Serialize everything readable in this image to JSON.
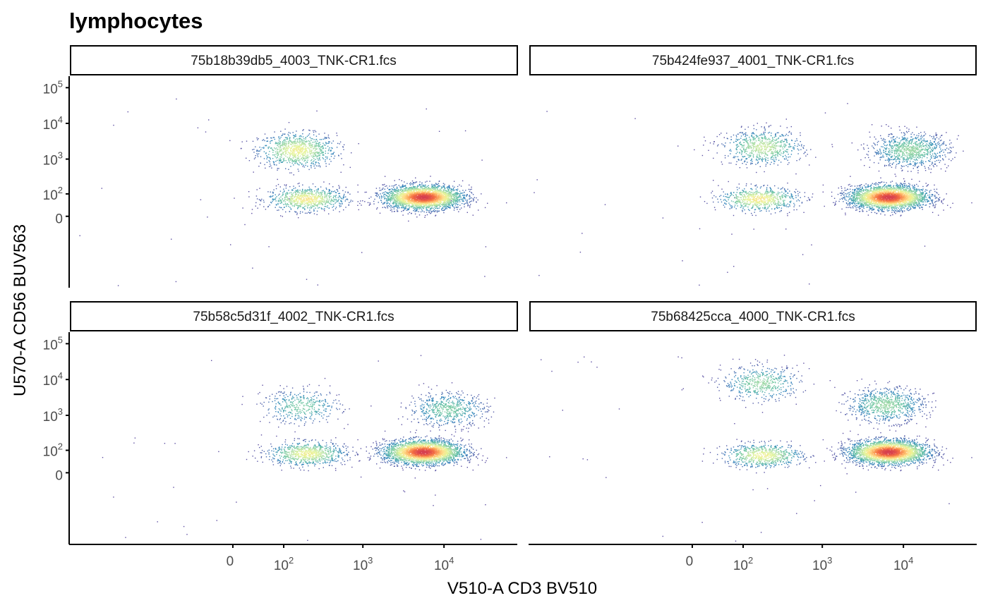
{
  "chart_data": {
    "type": "scatter",
    "title": "lymphocytes",
    "xlabel": "V510-A CD3 BV510",
    "ylabel": "U570-A CD56 BUV563",
    "x_scale": "logicle",
    "y_scale": "logicle",
    "x_ticks": [
      {
        "value": 0,
        "base": "0",
        "exp": ""
      },
      {
        "value": 100,
        "base": "10",
        "exp": "2"
      },
      {
        "value": 1000,
        "base": "10",
        "exp": "3"
      },
      {
        "value": 10000,
        "base": "10",
        "exp": "4"
      }
    ],
    "y_ticks": [
      {
        "value": 0,
        "base": "0",
        "exp": ""
      },
      {
        "value": 100,
        "base": "10",
        "exp": "2"
      },
      {
        "value": 1000,
        "base": "10",
        "exp": "3"
      },
      {
        "value": 10000,
        "base": "10",
        "exp": "4"
      },
      {
        "value": 100000,
        "base": "10",
        "exp": "5"
      }
    ],
    "color_scale": [
      "#5e4fa2",
      "#3288bd",
      "#66c2a5",
      "#abdda4",
      "#e6f598",
      "#fee08b",
      "#fdae61",
      "#f46d43",
      "#d53e4f"
    ],
    "legend": "none",
    "grid": false,
    "panels": [
      {
        "name": "75b18b39db5_4003_TNK-CR1.fcs",
        "populations": [
          {
            "x": 150,
            "y": 1800,
            "n": 900,
            "peak": 0.55
          },
          {
            "x": 200,
            "y": 70,
            "n": 800,
            "peak": 0.6
          },
          {
            "x": 5500,
            "y": 80,
            "n": 3000,
            "peak": 1.0
          }
        ]
      },
      {
        "name": "75b424fe937_4001_TNK-CR1.fcs",
        "populations": [
          {
            "x": 180,
            "y": 2200,
            "n": 700,
            "peak": 0.45
          },
          {
            "x": 160,
            "y": 70,
            "n": 700,
            "peak": 0.6
          },
          {
            "x": 6500,
            "y": 80,
            "n": 3000,
            "peak": 1.0
          },
          {
            "x": 12000,
            "y": 1800,
            "n": 900,
            "peak": 0.35
          }
        ]
      },
      {
        "name": "75b58c5d31f_4002_TNK-CR1.fcs",
        "populations": [
          {
            "x": 170,
            "y": 1800,
            "n": 400,
            "peak": 0.3
          },
          {
            "x": 200,
            "y": 80,
            "n": 800,
            "peak": 0.55
          },
          {
            "x": 5500,
            "y": 90,
            "n": 3000,
            "peak": 1.0
          },
          {
            "x": 11000,
            "y": 1500,
            "n": 600,
            "peak": 0.3
          }
        ]
      },
      {
        "name": "75b68425cca_4000_TNK-CR1.fcs",
        "populations": [
          {
            "x": 170,
            "y": 8000,
            "n": 500,
            "peak": 0.35
          },
          {
            "x": 180,
            "y": 70,
            "n": 700,
            "peak": 0.55
          },
          {
            "x": 6500,
            "y": 90,
            "n": 3000,
            "peak": 1.0
          },
          {
            "x": 6000,
            "y": 2000,
            "n": 800,
            "peak": 0.35
          }
        ]
      }
    ]
  }
}
